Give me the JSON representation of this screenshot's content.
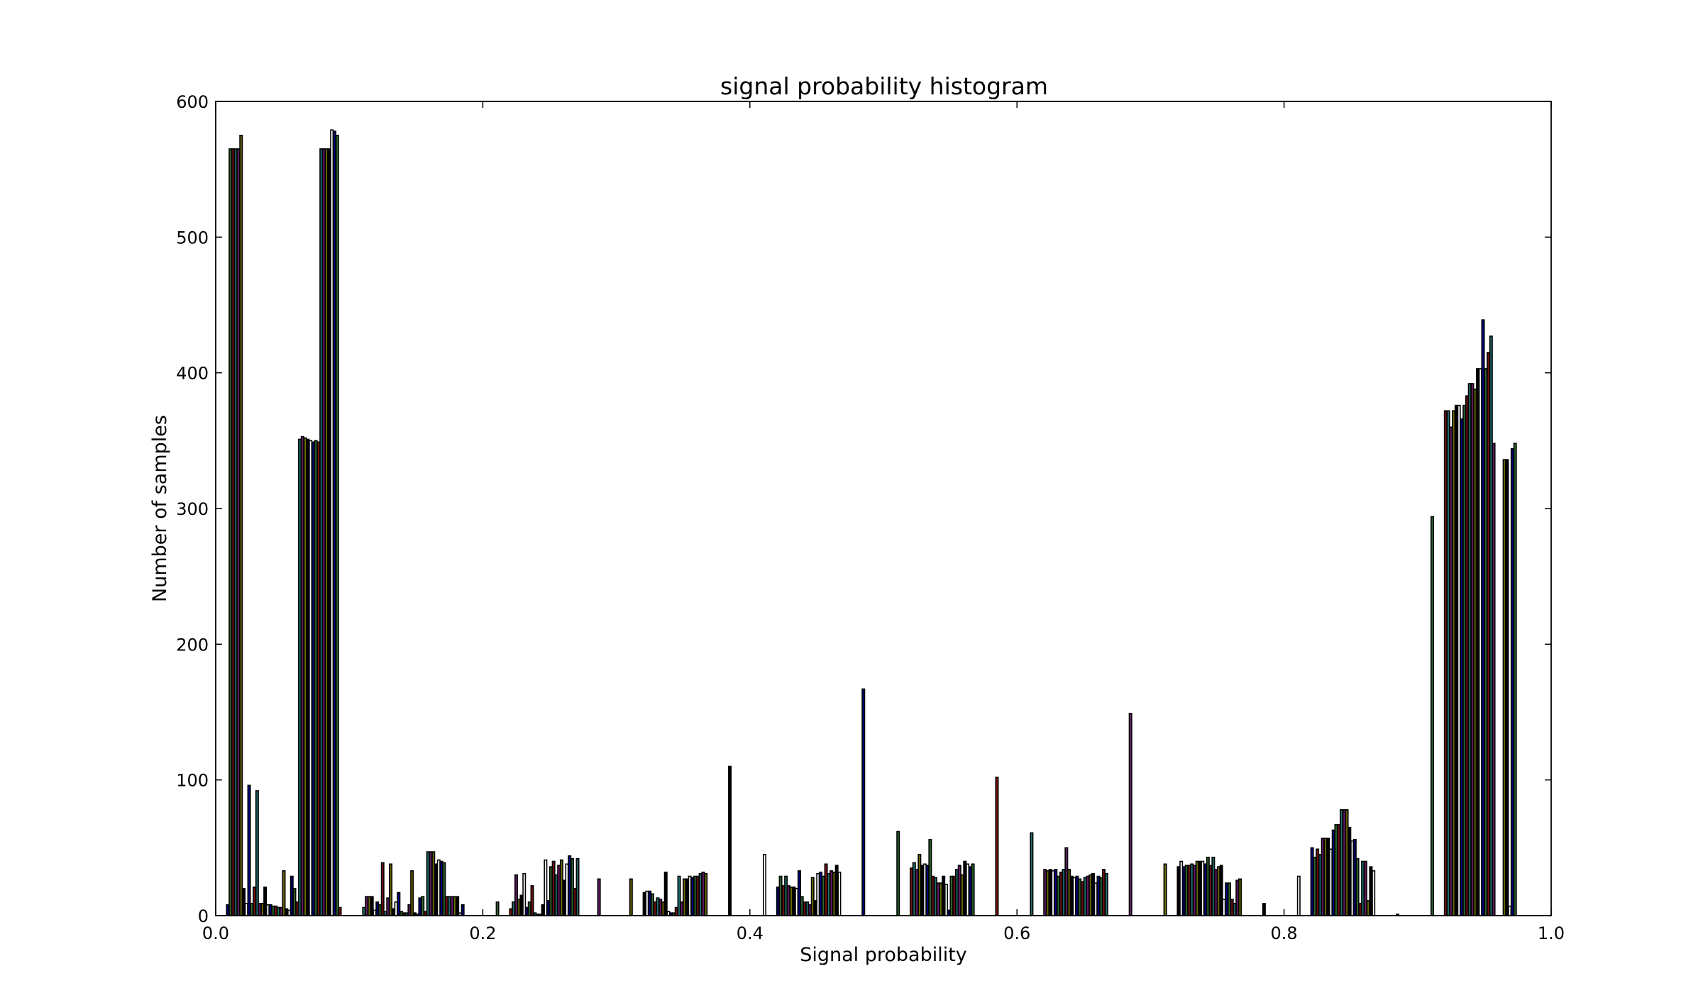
{
  "chart_data": {
    "type": "bar",
    "title": "signal probability histogram",
    "xlabel": "Signal probability",
    "ylabel": "Number of samples",
    "xlim": [
      0.0,
      1.0
    ],
    "ylim": [
      0,
      600
    ],
    "xticks": [
      "0.0",
      "0.2",
      "0.4",
      "0.6",
      "0.8",
      "1.0"
    ],
    "yticks": [
      "0",
      "100",
      "200",
      "300",
      "400",
      "500",
      "600"
    ],
    "grid": false,
    "legend": "none",
    "bar_width": 0.0018,
    "series_colors": [
      "#000080",
      "#2e6b2e",
      "#7a1010",
      "#1f6f6f",
      "#6a1a6a",
      "#6b6b00",
      "#000000",
      "#ffffff"
    ],
    "bars": [
      {
        "x": 0.009,
        "y": 8
      },
      {
        "x": 0.011,
        "y": 565
      },
      {
        "x": 0.013,
        "y": 565
      },
      {
        "x": 0.015,
        "y": 565
      },
      {
        "x": 0.017,
        "y": 565
      },
      {
        "x": 0.019,
        "y": 575
      },
      {
        "x": 0.021,
        "y": 20
      },
      {
        "x": 0.023,
        "y": 9
      },
      {
        "x": 0.025,
        "y": 96
      },
      {
        "x": 0.027,
        "y": 9
      },
      {
        "x": 0.029,
        "y": 21
      },
      {
        "x": 0.031,
        "y": 92
      },
      {
        "x": 0.033,
        "y": 9
      },
      {
        "x": 0.035,
        "y": 9
      },
      {
        "x": 0.037,
        "y": 21
      },
      {
        "x": 0.039,
        "y": 8
      },
      {
        "x": 0.041,
        "y": 8
      },
      {
        "x": 0.043,
        "y": 7
      },
      {
        "x": 0.045,
        "y": 7
      },
      {
        "x": 0.047,
        "y": 6
      },
      {
        "x": 0.049,
        "y": 6
      },
      {
        "x": 0.051,
        "y": 33
      },
      {
        "x": 0.053,
        "y": 5
      },
      {
        "x": 0.055,
        "y": 4
      },
      {
        "x": 0.057,
        "y": 29
      },
      {
        "x": 0.059,
        "y": 20
      },
      {
        "x": 0.061,
        "y": 10
      },
      {
        "x": 0.063,
        "y": 351
      },
      {
        "x": 0.065,
        "y": 353
      },
      {
        "x": 0.067,
        "y": 352
      },
      {
        "x": 0.069,
        "y": 351
      },
      {
        "x": 0.071,
        "y": 350
      },
      {
        "x": 0.073,
        "y": 349
      },
      {
        "x": 0.075,
        "y": 350
      },
      {
        "x": 0.077,
        "y": 349
      },
      {
        "x": 0.079,
        "y": 565
      },
      {
        "x": 0.081,
        "y": 565
      },
      {
        "x": 0.083,
        "y": 565
      },
      {
        "x": 0.085,
        "y": 565
      },
      {
        "x": 0.087,
        "y": 579
      },
      {
        "x": 0.089,
        "y": 578
      },
      {
        "x": 0.091,
        "y": 575
      },
      {
        "x": 0.093,
        "y": 6
      },
      {
        "x": 0.111,
        "y": 6
      },
      {
        "x": 0.113,
        "y": 14
      },
      {
        "x": 0.115,
        "y": 14
      },
      {
        "x": 0.117,
        "y": 14
      },
      {
        "x": 0.119,
        "y": 4
      },
      {
        "x": 0.121,
        "y": 10
      },
      {
        "x": 0.123,
        "y": 8
      },
      {
        "x": 0.125,
        "y": 39
      },
      {
        "x": 0.127,
        "y": 3
      },
      {
        "x": 0.129,
        "y": 13
      },
      {
        "x": 0.131,
        "y": 38
      },
      {
        "x": 0.133,
        "y": 5
      },
      {
        "x": 0.135,
        "y": 10
      },
      {
        "x": 0.137,
        "y": 17
      },
      {
        "x": 0.139,
        "y": 3
      },
      {
        "x": 0.141,
        "y": 2
      },
      {
        "x": 0.143,
        "y": 2
      },
      {
        "x": 0.145,
        "y": 8
      },
      {
        "x": 0.147,
        "y": 33
      },
      {
        "x": 0.149,
        "y": 2
      },
      {
        "x": 0.151,
        "y": 1
      },
      {
        "x": 0.153,
        "y": 13
      },
      {
        "x": 0.155,
        "y": 14
      },
      {
        "x": 0.157,
        "y": 3
      },
      {
        "x": 0.159,
        "y": 47
      },
      {
        "x": 0.161,
        "y": 47
      },
      {
        "x": 0.163,
        "y": 47
      },
      {
        "x": 0.165,
        "y": 38
      },
      {
        "x": 0.167,
        "y": 41
      },
      {
        "x": 0.169,
        "y": 40
      },
      {
        "x": 0.171,
        "y": 39
      },
      {
        "x": 0.173,
        "y": 14
      },
      {
        "x": 0.175,
        "y": 14
      },
      {
        "x": 0.177,
        "y": 14
      },
      {
        "x": 0.179,
        "y": 14
      },
      {
        "x": 0.181,
        "y": 14
      },
      {
        "x": 0.183,
        "y": 2
      },
      {
        "x": 0.185,
        "y": 8
      },
      {
        "x": 0.211,
        "y": 10
      },
      {
        "x": 0.221,
        "y": 5
      },
      {
        "x": 0.223,
        "y": 10
      },
      {
        "x": 0.225,
        "y": 30
      },
      {
        "x": 0.227,
        "y": 12
      },
      {
        "x": 0.229,
        "y": 15
      },
      {
        "x": 0.231,
        "y": 31
      },
      {
        "x": 0.233,
        "y": 6
      },
      {
        "x": 0.235,
        "y": 10
      },
      {
        "x": 0.237,
        "y": 22
      },
      {
        "x": 0.239,
        "y": 2
      },
      {
        "x": 0.241,
        "y": 1
      },
      {
        "x": 0.243,
        "y": 1
      },
      {
        "x": 0.245,
        "y": 8
      },
      {
        "x": 0.247,
        "y": 41
      },
      {
        "x": 0.249,
        "y": 11
      },
      {
        "x": 0.251,
        "y": 36
      },
      {
        "x": 0.253,
        "y": 40
      },
      {
        "x": 0.255,
        "y": 30
      },
      {
        "x": 0.257,
        "y": 37
      },
      {
        "x": 0.259,
        "y": 41
      },
      {
        "x": 0.261,
        "y": 26
      },
      {
        "x": 0.263,
        "y": 38
      },
      {
        "x": 0.265,
        "y": 44
      },
      {
        "x": 0.267,
        "y": 42
      },
      {
        "x": 0.269,
        "y": 20
      },
      {
        "x": 0.271,
        "y": 42
      },
      {
        "x": 0.287,
        "y": 27
      },
      {
        "x": 0.311,
        "y": 27
      },
      {
        "x": 0.321,
        "y": 17
      },
      {
        "x": 0.323,
        "y": 18
      },
      {
        "x": 0.325,
        "y": 18
      },
      {
        "x": 0.327,
        "y": 16
      },
      {
        "x": 0.329,
        "y": 10
      },
      {
        "x": 0.331,
        "y": 13
      },
      {
        "x": 0.333,
        "y": 12
      },
      {
        "x": 0.335,
        "y": 10
      },
      {
        "x": 0.337,
        "y": 32
      },
      {
        "x": 0.339,
        "y": 3
      },
      {
        "x": 0.341,
        "y": 2
      },
      {
        "x": 0.343,
        "y": 2
      },
      {
        "x": 0.345,
        "y": 6
      },
      {
        "x": 0.347,
        "y": 29
      },
      {
        "x": 0.349,
        "y": 10
      },
      {
        "x": 0.351,
        "y": 27
      },
      {
        "x": 0.353,
        "y": 27
      },
      {
        "x": 0.355,
        "y": 29
      },
      {
        "x": 0.357,
        "y": 28
      },
      {
        "x": 0.359,
        "y": 29
      },
      {
        "x": 0.361,
        "y": 29
      },
      {
        "x": 0.363,
        "y": 31
      },
      {
        "x": 0.365,
        "y": 32
      },
      {
        "x": 0.367,
        "y": 31
      },
      {
        "x": 0.385,
        "y": 110
      },
      {
        "x": 0.411,
        "y": 45
      },
      {
        "x": 0.421,
        "y": 21
      },
      {
        "x": 0.423,
        "y": 29
      },
      {
        "x": 0.425,
        "y": 22
      },
      {
        "x": 0.427,
        "y": 29
      },
      {
        "x": 0.429,
        "y": 22
      },
      {
        "x": 0.431,
        "y": 21
      },
      {
        "x": 0.433,
        "y": 21
      },
      {
        "x": 0.435,
        "y": 20
      },
      {
        "x": 0.437,
        "y": 33
      },
      {
        "x": 0.439,
        "y": 14
      },
      {
        "x": 0.441,
        "y": 10
      },
      {
        "x": 0.443,
        "y": 10
      },
      {
        "x": 0.445,
        "y": 8
      },
      {
        "x": 0.447,
        "y": 28
      },
      {
        "x": 0.449,
        "y": 11
      },
      {
        "x": 0.451,
        "y": 31
      },
      {
        "x": 0.453,
        "y": 32
      },
      {
        "x": 0.455,
        "y": 29
      },
      {
        "x": 0.457,
        "y": 38
      },
      {
        "x": 0.459,
        "y": 31
      },
      {
        "x": 0.461,
        "y": 33
      },
      {
        "x": 0.463,
        "y": 32
      },
      {
        "x": 0.465,
        "y": 37
      },
      {
        "x": 0.467,
        "y": 32
      },
      {
        "x": 0.485,
        "y": 167
      },
      {
        "x": 0.511,
        "y": 62
      },
      {
        "x": 0.521,
        "y": 35
      },
      {
        "x": 0.523,
        "y": 39
      },
      {
        "x": 0.525,
        "y": 34
      },
      {
        "x": 0.527,
        "y": 45
      },
      {
        "x": 0.529,
        "y": 37
      },
      {
        "x": 0.531,
        "y": 38
      },
      {
        "x": 0.533,
        "y": 37
      },
      {
        "x": 0.535,
        "y": 56
      },
      {
        "x": 0.537,
        "y": 29
      },
      {
        "x": 0.539,
        "y": 28
      },
      {
        "x": 0.541,
        "y": 24
      },
      {
        "x": 0.543,
        "y": 24
      },
      {
        "x": 0.545,
        "y": 29
      },
      {
        "x": 0.547,
        "y": 23
      },
      {
        "x": 0.549,
        "y": 4
      },
      {
        "x": 0.551,
        "y": 29
      },
      {
        "x": 0.553,
        "y": 29
      },
      {
        "x": 0.555,
        "y": 34
      },
      {
        "x": 0.557,
        "y": 37
      },
      {
        "x": 0.559,
        "y": 30
      },
      {
        "x": 0.561,
        "y": 40
      },
      {
        "x": 0.563,
        "y": 38
      },
      {
        "x": 0.565,
        "y": 36
      },
      {
        "x": 0.567,
        "y": 38
      },
      {
        "x": 0.585,
        "y": 102
      },
      {
        "x": 0.611,
        "y": 61
      },
      {
        "x": 0.621,
        "y": 34
      },
      {
        "x": 0.623,
        "y": 33
      },
      {
        "x": 0.625,
        "y": 34
      },
      {
        "x": 0.627,
        "y": 33
      },
      {
        "x": 0.629,
        "y": 34
      },
      {
        "x": 0.631,
        "y": 29
      },
      {
        "x": 0.633,
        "y": 32
      },
      {
        "x": 0.635,
        "y": 34
      },
      {
        "x": 0.637,
        "y": 50
      },
      {
        "x": 0.639,
        "y": 34
      },
      {
        "x": 0.641,
        "y": 29
      },
      {
        "x": 0.643,
        "y": 28
      },
      {
        "x": 0.645,
        "y": 29
      },
      {
        "x": 0.647,
        "y": 27
      },
      {
        "x": 0.649,
        "y": 25
      },
      {
        "x": 0.651,
        "y": 28
      },
      {
        "x": 0.653,
        "y": 29
      },
      {
        "x": 0.655,
        "y": 30
      },
      {
        "x": 0.657,
        "y": 31
      },
      {
        "x": 0.659,
        "y": 24
      },
      {
        "x": 0.661,
        "y": 29
      },
      {
        "x": 0.663,
        "y": 28
      },
      {
        "x": 0.665,
        "y": 34
      },
      {
        "x": 0.667,
        "y": 31
      },
      {
        "x": 0.685,
        "y": 149
      },
      {
        "x": 0.711,
        "y": 38
      },
      {
        "x": 0.721,
        "y": 36
      },
      {
        "x": 0.723,
        "y": 40
      },
      {
        "x": 0.725,
        "y": 36
      },
      {
        "x": 0.727,
        "y": 37
      },
      {
        "x": 0.729,
        "y": 37
      },
      {
        "x": 0.731,
        "y": 38
      },
      {
        "x": 0.733,
        "y": 37
      },
      {
        "x": 0.735,
        "y": 40
      },
      {
        "x": 0.737,
        "y": 40
      },
      {
        "x": 0.739,
        "y": 40
      },
      {
        "x": 0.741,
        "y": 38
      },
      {
        "x": 0.743,
        "y": 43
      },
      {
        "x": 0.745,
        "y": 37
      },
      {
        "x": 0.747,
        "y": 43
      },
      {
        "x": 0.749,
        "y": 34
      },
      {
        "x": 0.751,
        "y": 36
      },
      {
        "x": 0.753,
        "y": 37
      },
      {
        "x": 0.755,
        "y": 12
      },
      {
        "x": 0.757,
        "y": 24
      },
      {
        "x": 0.759,
        "y": 24
      },
      {
        "x": 0.761,
        "y": 12
      },
      {
        "x": 0.763,
        "y": 9
      },
      {
        "x": 0.765,
        "y": 26
      },
      {
        "x": 0.767,
        "y": 27
      },
      {
        "x": 0.785,
        "y": 9
      },
      {
        "x": 0.811,
        "y": 29
      },
      {
        "x": 0.821,
        "y": 50
      },
      {
        "x": 0.823,
        "y": 43
      },
      {
        "x": 0.825,
        "y": 49
      },
      {
        "x": 0.827,
        "y": 45
      },
      {
        "x": 0.829,
        "y": 57
      },
      {
        "x": 0.831,
        "y": 57
      },
      {
        "x": 0.833,
        "y": 57
      },
      {
        "x": 0.835,
        "y": 49
      },
      {
        "x": 0.837,
        "y": 63
      },
      {
        "x": 0.839,
        "y": 67
      },
      {
        "x": 0.841,
        "y": 67
      },
      {
        "x": 0.843,
        "y": 78
      },
      {
        "x": 0.845,
        "y": 78
      },
      {
        "x": 0.847,
        "y": 78
      },
      {
        "x": 0.849,
        "y": 65
      },
      {
        "x": 0.851,
        "y": 55
      },
      {
        "x": 0.853,
        "y": 56
      },
      {
        "x": 0.855,
        "y": 42
      },
      {
        "x": 0.857,
        "y": 9
      },
      {
        "x": 0.859,
        "y": 40
      },
      {
        "x": 0.861,
        "y": 40
      },
      {
        "x": 0.863,
        "y": 11
      },
      {
        "x": 0.865,
        "y": 36
      },
      {
        "x": 0.867,
        "y": 33
      },
      {
        "x": 0.885,
        "y": 1
      },
      {
        "x": 0.911,
        "y": 294
      },
      {
        "x": 0.921,
        "y": 372
      },
      {
        "x": 0.923,
        "y": 372
      },
      {
        "x": 0.925,
        "y": 360
      },
      {
        "x": 0.927,
        "y": 372
      },
      {
        "x": 0.929,
        "y": 376
      },
      {
        "x": 0.931,
        "y": 376
      },
      {
        "x": 0.933,
        "y": 366
      },
      {
        "x": 0.935,
        "y": 376
      },
      {
        "x": 0.937,
        "y": 383
      },
      {
        "x": 0.939,
        "y": 392
      },
      {
        "x": 0.941,
        "y": 392
      },
      {
        "x": 0.943,
        "y": 388
      },
      {
        "x": 0.945,
        "y": 403
      },
      {
        "x": 0.947,
        "y": 403
      },
      {
        "x": 0.949,
        "y": 439
      },
      {
        "x": 0.951,
        "y": 403
      },
      {
        "x": 0.953,
        "y": 415
      },
      {
        "x": 0.955,
        "y": 427
      },
      {
        "x": 0.957,
        "y": 348
      },
      {
        "x": 0.965,
        "y": 336
      },
      {
        "x": 0.967,
        "y": 336
      },
      {
        "x": 0.969,
        "y": 7
      },
      {
        "x": 0.971,
        "y": 344
      },
      {
        "x": 0.973,
        "y": 348
      }
    ]
  }
}
